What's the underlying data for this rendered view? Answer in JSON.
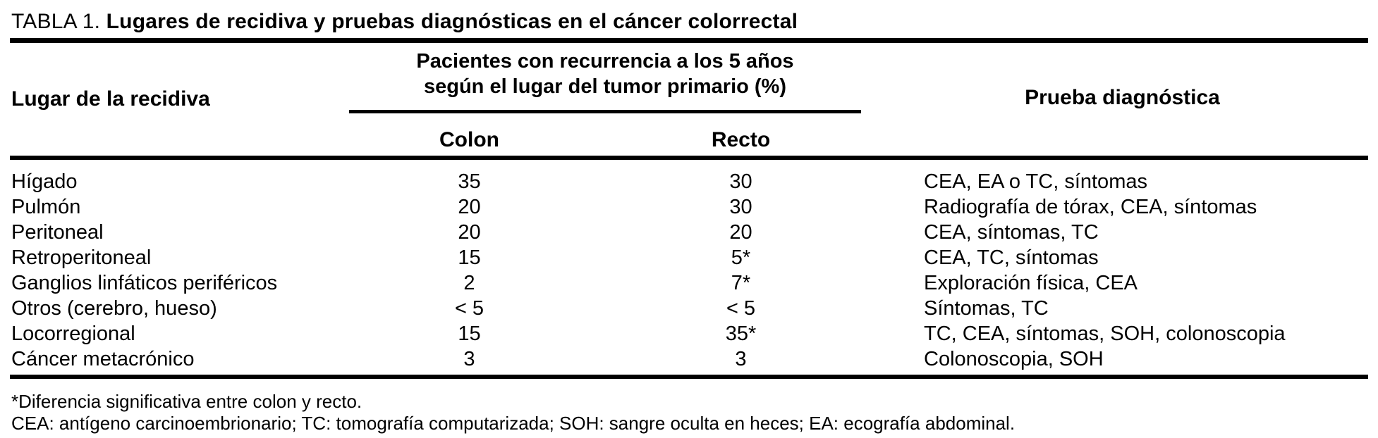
{
  "title": {
    "prefix": "TABLA 1.",
    "text": " Lugares de recidiva y pruebas diagnósticas en el cáncer colorrectal"
  },
  "table": {
    "site_column_header": "Lugar de la recidiva",
    "group_header": {
      "line1": "Pacientes con recurrencia a los 5 años",
      "line2": "según el lugar del tumor primario (%)"
    },
    "subheaders": {
      "colon": "Colon",
      "recto": "Recto"
    },
    "test_column_header": "Prueba diagnóstica",
    "rows": [
      {
        "site": "Hígado",
        "colon": "35",
        "recto": "30",
        "test": "CEA, EA o TC, síntomas"
      },
      {
        "site": "Pulmón",
        "colon": "20",
        "recto": "30",
        "test": "Radiografía de tórax, CEA, síntomas"
      },
      {
        "site": "Peritoneal",
        "colon": "20",
        "recto": "20",
        "test": "CEA, síntomas, TC"
      },
      {
        "site": "Retroperitoneal",
        "colon": "15",
        "recto": "5*",
        "test": "CEA, TC, síntomas"
      },
      {
        "site": "Ganglios linfáticos periféricos",
        "colon": "2",
        "recto": "7*",
        "test": "Exploración física, CEA"
      },
      {
        "site": "Otros (cerebro, hueso)",
        "colon": "< 5",
        "recto": "< 5",
        "test": "Síntomas, TC"
      },
      {
        "site": "Locorregional",
        "colon": "15",
        "recto": "35*",
        "test": "TC, CEA, síntomas, SOH, colonoscopia"
      },
      {
        "site": "Cáncer metacrónico",
        "colon": "3",
        "recto": "3",
        "test": "Colonoscopia, SOH"
      }
    ]
  },
  "footnotes": {
    "significance": "*Diferencia significativa entre colon y recto.",
    "abbreviations": "CEA: antígeno carcinoembrionario; TC: tomografía computarizada; SOH: sangre oculta en heces; EA: ecografía abdominal."
  },
  "colors": {
    "text": "#000000",
    "background": "#ffffff",
    "rule": "#000000"
  }
}
